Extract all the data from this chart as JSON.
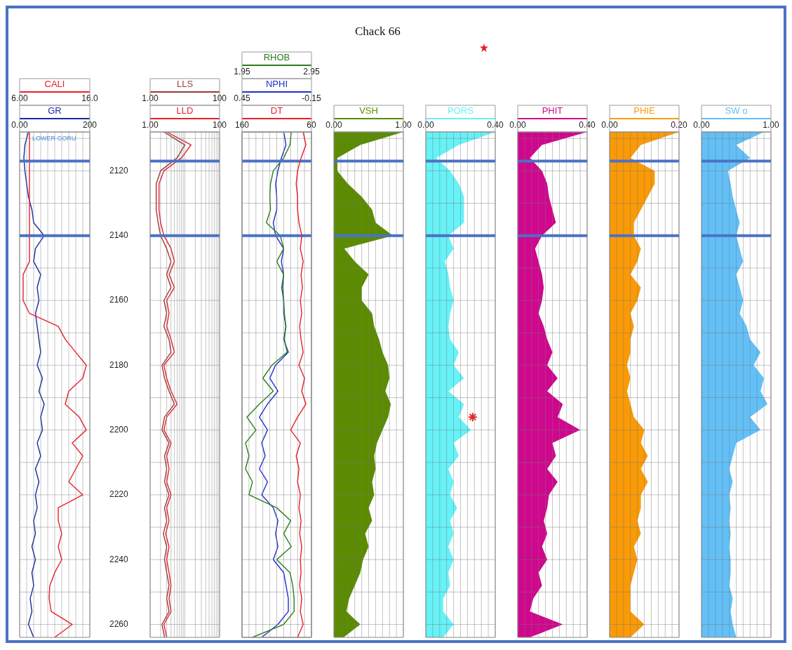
{
  "chart_data": [
    {
      "type": "line",
      "orientation": "horizontal",
      "grid": true,
      "xlim": [
        6,
        16
      ],
      "xticks": [
        {
          "value": 6,
          "label": "6.00"
        },
        {
          "value": 7,
          "label": null
        },
        {
          "value": 8,
          "label": null
        },
        {
          "value": 9,
          "label": null
        },
        {
          "value": 10,
          "label": null
        },
        {
          "value": 11,
          "label": null
        },
        {
          "value": 12,
          "label": null
        },
        {
          "value": 13,
          "label": null
        },
        {
          "value": 14,
          "label": null
        },
        {
          "value": 15,
          "label": null
        },
        {
          "value": 16,
          "label": "16.0"
        }
      ],
      "x2lim": [
        0,
        200
      ],
      "x2ticks": [
        {
          "value": 0,
          "label": "0.00"
        },
        200
      ],
      "ylim": [
        2264,
        2108
      ],
      "yticks": [
        {
          "value": 2110,
          "label": null
        },
        2120,
        {
          "value": 2130,
          "label": null
        },
        2140,
        {
          "value": 2150,
          "label": null
        },
        2160,
        {
          "value": 2170,
          "label": null
        },
        2180,
        {
          "value": 2190,
          "label": null
        },
        2200,
        {
          "value": 2210,
          "label": null
        },
        2220,
        {
          "value": 2230,
          "label": null
        },
        2240,
        {
          "value": 2250,
          "label": null
        },
        2260
      ],
      "ref_lines": [
        {
          "axis": "y",
          "value": 2117,
          "color": "#4a72c4"
        },
        {
          "axis": "y",
          "value": 2140,
          "color": "#4a72c4"
        }
      ],
      "annotations": [
        "LOWER GORU"
      ],
      "x": [
        2108,
        2112,
        2116,
        2120,
        2124,
        2128,
        2132,
        2136,
        2140,
        2144,
        2148,
        2152,
        2156,
        2160,
        2164,
        2168,
        2172,
        2176,
        2180,
        2184,
        2188,
        2192,
        2196,
        2200,
        2204,
        2208,
        2212,
        2216,
        2220,
        2224,
        2228,
        2232,
        2236,
        2240,
        2244,
        2248,
        2252,
        2256,
        2260,
        2264
      ],
      "series": [
        {
          "name": "CALI",
          "color": "#e8202a",
          "values": [
            7.4,
            7.4,
            7.4,
            7.4,
            7.4,
            7.4,
            7.4,
            7.4,
            7.4,
            7.4,
            7.4,
            6.5,
            6.5,
            6.5,
            7.4,
            11.5,
            12.5,
            14.0,
            15.5,
            15.0,
            13.0,
            12.5,
            14.5,
            15.5,
            13.5,
            15.0,
            14.0,
            13.0,
            15.0,
            11.5,
            11.5,
            12.0,
            11.5,
            12.0,
            11.0,
            10.3,
            10.2,
            10.5,
            13.5,
            11
          ]
        },
        {
          "name": "GR",
          "color": "#1a2aa0",
          "axis": "x2",
          "values": [
            25,
            15,
            12,
            15,
            20,
            25,
            35,
            40,
            70,
            45,
            40,
            60,
            50,
            55,
            45,
            50,
            55,
            60,
            50,
            65,
            55,
            70,
            60,
            65,
            50,
            60,
            45,
            55,
            45,
            50,
            40,
            45,
            35,
            45,
            35,
            40,
            30,
            35,
            25,
            40
          ]
        }
      ]
    },
    {
      "type": "line",
      "orientation": "horizontal",
      "grid": true,
      "log": "x",
      "tick_labels": "x",
      "xlim": [
        1,
        100
      ],
      "xticks": [
        {
          "value": 1,
          "label": "1.00"
        },
        {
          "value": 2,
          "label": null
        },
        {
          "value": 3,
          "label": null
        },
        {
          "value": 4,
          "label": null
        },
        {
          "value": 5,
          "label": null
        },
        {
          "value": 6,
          "label": null
        },
        {
          "value": 7,
          "label": null
        },
        {
          "value": 8,
          "label": null
        },
        {
          "value": 9,
          "label": null
        },
        {
          "value": 10,
          "label": null
        },
        {
          "value": 20,
          "label": null
        },
        {
          "value": 30,
          "label": null
        },
        {
          "value": 40,
          "label": null
        },
        {
          "value": 50,
          "label": null
        },
        {
          "value": 60,
          "label": null
        },
        {
          "value": 70,
          "label": null
        },
        {
          "value": 80,
          "label": null
        },
        {
          "value": 90,
          "label": null
        },
        100
      ],
      "x2lim": [
        1,
        100
      ],
      "x2ticks": [
        {
          "value": 1,
          "label": "1.00"
        },
        100
      ],
      "ylim": [
        2264,
        2108
      ],
      "yticks": [
        {
          "value": 2110,
          "label": null
        },
        2120,
        {
          "value": 2130,
          "label": null
        },
        2140,
        {
          "value": 2150,
          "label": null
        },
        2160,
        {
          "value": 2170,
          "label": null
        },
        2180,
        {
          "value": 2190,
          "label": null
        },
        2200,
        {
          "value": 2210,
          "label": null
        },
        2220,
        {
          "value": 2230,
          "label": null
        },
        2240,
        {
          "value": 2250,
          "label": null
        },
        2260
      ],
      "ref_lines": [
        {
          "axis": "y",
          "value": 2117,
          "color": "#4a72c4"
        },
        {
          "axis": "y",
          "value": 2140,
          "color": "#4a72c4"
        }
      ],
      "x": [
        2108,
        2112,
        2116,
        2120,
        2124,
        2128,
        2132,
        2136,
        2140,
        2144,
        2148,
        2152,
        2156,
        2160,
        2164,
        2168,
        2172,
        2176,
        2180,
        2184,
        2188,
        2192,
        2196,
        2200,
        2204,
        2208,
        2212,
        2216,
        2220,
        2224,
        2228,
        2232,
        2236,
        2240,
        2244,
        2248,
        2252,
        2256,
        2260,
        2264
      ],
      "series": [
        {
          "name": "LLS",
          "color": "#9a3a3a",
          "values": [
            2.5,
            10,
            6,
            2,
            1.5,
            1.5,
            1.5,
            1.7,
            2,
            3,
            4,
            3,
            4,
            2.5,
            3,
            2.5,
            3.5,
            4,
            2.2,
            2.6,
            3.5,
            5,
            2.6,
            2.2,
            3.5,
            2.6,
            3,
            2.6,
            3.5,
            2.6,
            3,
            2.4,
            3,
            2.6,
            3,
            3.5,
            3,
            3.5,
            2.2,
            2.6
          ]
        },
        {
          "name": "LLD",
          "color": "#e8202a",
          "values": [
            3,
            15,
            8,
            2.5,
            1.8,
            1.8,
            1.8,
            2,
            2.5,
            4,
            5,
            3.5,
            5,
            3,
            3.5,
            3,
            4,
            5,
            2.5,
            3,
            4,
            6,
            3,
            2.5,
            4,
            3,
            3.5,
            3,
            4,
            3,
            3.5,
            2.8,
            3.5,
            3,
            3.5,
            4,
            3.5,
            4,
            2.5,
            3
          ]
        }
      ]
    },
    {
      "type": "line",
      "orientation": "horizontal",
      "grid": true,
      "tick_labels": "x",
      "xlim": [
        1.95,
        2.95
      ],
      "xticks": [
        {
          "value": 1.95,
          "label": "1.95"
        },
        {
          "value": 2.05,
          "label": null
        },
        {
          "value": 2.15,
          "label": null
        },
        {
          "value": 2.25,
          "label": null
        },
        {
          "value": 2.35,
          "label": null
        },
        {
          "value": 2.45,
          "label": null
        },
        {
          "value": 2.55,
          "label": null
        },
        {
          "value": 2.65,
          "label": null
        },
        {
          "value": 2.75,
          "label": null
        },
        {
          "value": 2.85,
          "label": null
        },
        {
          "value": 2.95,
          "label": "2.95"
        }
      ],
      "x2lim": [
        0.45,
        -0.15
      ],
      "x2ticks": [
        {
          "value": 0.45,
          "label": "0.45"
        },
        {
          "value": -0.15,
          "label": "-0.15"
        }
      ],
      "ylim": [
        2264,
        2108
      ],
      "yticks": [
        {
          "value": 2110,
          "label": null
        },
        2120,
        {
          "value": 2130,
          "label": null
        },
        2140,
        {
          "value": 2150,
          "label": null
        },
        2160,
        {
          "value": 2170,
          "label": null
        },
        2180,
        {
          "value": 2190,
          "label": null
        },
        2200,
        {
          "value": 2210,
          "label": null
        },
        2220,
        {
          "value": 2230,
          "label": null
        },
        2240,
        {
          "value": 2250,
          "label": null
        },
        2260
      ],
      "ref_lines": [
        {
          "axis": "y",
          "value": 2117,
          "color": "#4a72c4"
        },
        {
          "axis": "y",
          "value": 2140,
          "color": "#4a72c4"
        }
      ],
      "x": [
        2108,
        2112,
        2116,
        2120,
        2124,
        2128,
        2132,
        2136,
        2140,
        2144,
        2148,
        2152,
        2156,
        2160,
        2164,
        2168,
        2172,
        2176,
        2180,
        2184,
        2188,
        2192,
        2196,
        2200,
        2204,
        2208,
        2212,
        2216,
        2220,
        2224,
        2228,
        2232,
        2236,
        2240,
        2244,
        2248,
        2252,
        2256,
        2260,
        2264
      ],
      "series": [
        {
          "name": "RHOB",
          "color": "#2a7d1a",
          "values": [
            2.66,
            2.64,
            2.55,
            2.4,
            2.36,
            2.35,
            2.36,
            2.3,
            2.5,
            2.55,
            2.45,
            2.55,
            2.52,
            2.55,
            2.56,
            2.58,
            2.56,
            2.6,
            2.38,
            2.25,
            2.4,
            2.2,
            2.02,
            2.15,
            2.0,
            2.05,
            2.0,
            2.1,
            2.05,
            2.45,
            2.65,
            2.55,
            2.66,
            2.45,
            2.64,
            2.68,
            2.7,
            2.7,
            2.55,
            2.1
          ]
        },
        {
          "name": "NPHI",
          "color": "#1f2fd0",
          "axis": "x2",
          "values": [
            0.09,
            0.07,
            0.11,
            0.14,
            0.16,
            0.15,
            0.15,
            0.18,
            0.16,
            0.09,
            0.11,
            0.09,
            0.1,
            0.09,
            0.09,
            0.07,
            0.09,
            0.05,
            0.16,
            0.21,
            0.14,
            0.23,
            0.3,
            0.23,
            0.28,
            0.25,
            0.3,
            0.23,
            0.28,
            0.18,
            0.14,
            0.16,
            0.14,
            0.18,
            0.09,
            0.07,
            0.05,
            0.05,
            0.14,
            0.28
          ]
        }
      ]
    },
    {
      "type": "line",
      "orientation": "horizontal",
      "tick_labels": "x",
      "xlim": [
        160,
        60
      ],
      "xticks": [
        160,
        60
      ],
      "ylim": [
        2264,
        2108
      ],
      "x": [
        2108,
        2112,
        2116,
        2120,
        2124,
        2128,
        2132,
        2136,
        2140,
        2144,
        2148,
        2152,
        2156,
        2160,
        2164,
        2168,
        2172,
        2176,
        2180,
        2184,
        2188,
        2192,
        2196,
        2200,
        2204,
        2208,
        2212,
        2216,
        2220,
        2224,
        2228,
        2232,
        2236,
        2240,
        2244,
        2248,
        2252,
        2256,
        2260,
        2264
      ],
      "series": [
        {
          "name": "DT",
          "color": "#e8202a",
          "values": [
            72,
            68,
            75,
            80,
            82,
            80,
            80,
            78,
            74,
            76,
            72,
            75,
            73,
            76,
            74,
            77,
            75,
            72,
            78,
            70,
            74,
            68,
            80,
            90,
            76,
            82,
            78,
            80,
            76,
            78,
            75,
            77,
            74,
            76,
            75,
            77,
            74,
            76,
            72,
            80
          ]
        }
      ]
    },
    {
      "type": "area",
      "orientation": "horizontal",
      "grid": true,
      "tick_labels": "x",
      "title": "Chack 66",
      "xlim": [
        0,
        1
      ],
      "xticks": [
        {
          "value": 0,
          "label": "0.00"
        },
        {
          "value": 0.1,
          "label": null
        },
        {
          "value": 0.2,
          "label": null
        },
        {
          "value": 0.3,
          "label": null
        },
        {
          "value": 0.4,
          "label": null
        },
        {
          "value": 0.5,
          "label": null
        },
        {
          "value": 0.6,
          "label": null
        },
        {
          "value": 0.7,
          "label": null
        },
        {
          "value": 0.8,
          "label": null
        },
        {
          "value": 0.9,
          "label": null
        },
        {
          "value": 1,
          "label": "1.00"
        }
      ],
      "ylim": [
        2264,
        2108
      ],
      "yticks": [
        {
          "value": 2110,
          "label": null
        },
        2120,
        {
          "value": 2130,
          "label": null
        },
        2140,
        {
          "value": 2150,
          "label": null
        },
        2160,
        {
          "value": 2170,
          "label": null
        },
        2180,
        {
          "value": 2190,
          "label": null
        },
        2200,
        {
          "value": 2210,
          "label": null
        },
        2220,
        {
          "value": 2230,
          "label": null
        },
        2240,
        {
          "value": 2250,
          "label": null
        },
        2260
      ],
      "ref_lines": [
        {
          "axis": "y",
          "value": 2117,
          "color": "#4a72c4"
        },
        {
          "axis": "y",
          "value": 2140,
          "color": "#4a72c4"
        }
      ],
      "x": [
        2108,
        2112,
        2116,
        2120,
        2124,
        2128,
        2132,
        2136,
        2140,
        2144,
        2148,
        2152,
        2156,
        2160,
        2164,
        2168,
        2172,
        2176,
        2180,
        2184,
        2188,
        2192,
        2196,
        2200,
        2204,
        2208,
        2212,
        2216,
        2220,
        2224,
        2228,
        2232,
        2236,
        2240,
        2244,
        2248,
        2252,
        2256,
        2260,
        2264
      ],
      "series": [
        {
          "name": "VSH",
          "color": "#5b8c00",
          "values": [
            1.0,
            0.38,
            0.05,
            0.05,
            0.2,
            0.4,
            0.55,
            0.6,
            0.85,
            0.15,
            0.3,
            0.5,
            0.4,
            0.4,
            0.55,
            0.58,
            0.65,
            0.7,
            0.78,
            0.8,
            0.74,
            0.82,
            0.78,
            0.7,
            0.62,
            0.58,
            0.6,
            0.55,
            0.58,
            0.5,
            0.55,
            0.45,
            0.5,
            0.42,
            0.38,
            0.3,
            0.22,
            0.18,
            0.38,
            0.14
          ]
        }
      ]
    },
    {
      "type": "area",
      "orientation": "horizontal",
      "grid": true,
      "tick_labels": "x",
      "xlim": [
        0,
        0.4
      ],
      "xticks": [
        {
          "value": 0,
          "label": "0.00"
        },
        {
          "value": 0.04,
          "label": null
        },
        {
          "value": 0.08,
          "label": null
        },
        {
          "value": 0.12,
          "label": null
        },
        {
          "value": 0.16,
          "label": null
        },
        {
          "value": 0.2,
          "label": null
        },
        {
          "value": 0.24,
          "label": null
        },
        {
          "value": 0.28,
          "label": null
        },
        {
          "value": 0.32,
          "label": null
        },
        {
          "value": 0.36,
          "label": null
        },
        {
          "value": 0.4,
          "label": "0.40"
        }
      ],
      "ylim": [
        2264,
        2108
      ],
      "yticks": [
        {
          "value": 2110,
          "label": null
        },
        2120,
        {
          "value": 2130,
          "label": null
        },
        2140,
        {
          "value": 2150,
          "label": null
        },
        2160,
        {
          "value": 2170,
          "label": null
        },
        2180,
        {
          "value": 2190,
          "label": null
        },
        2200,
        {
          "value": 2210,
          "label": null
        },
        2220,
        {
          "value": 2230,
          "label": null
        },
        2240,
        {
          "value": 2250,
          "label": null
        },
        2260
      ],
      "ref_lines": [
        {
          "axis": "y",
          "value": 2117,
          "color": "#4a72c4"
        },
        {
          "axis": "y",
          "value": 2140,
          "color": "#4a72c4"
        }
      ],
      "x": [
        2108,
        2112,
        2116,
        2120,
        2124,
        2128,
        2132,
        2136,
        2140,
        2144,
        2148,
        2152,
        2156,
        2160,
        2164,
        2168,
        2172,
        2176,
        2180,
        2184,
        2188,
        2192,
        2196,
        2200,
        2204,
        2208,
        2212,
        2216,
        2220,
        2224,
        2228,
        2232,
        2236,
        2240,
        2244,
        2248,
        2252,
        2256,
        2260,
        2264
      ],
      "series": [
        {
          "name": "PORS",
          "color": "#66f2f7",
          "values": [
            0.4,
            0.19,
            0.06,
            0.14,
            0.19,
            0.22,
            0.22,
            0.22,
            0.13,
            0.16,
            0.11,
            0.13,
            0.14,
            0.16,
            0.14,
            0.13,
            0.14,
            0.19,
            0.16,
            0.22,
            0.13,
            0.22,
            0.19,
            0.26,
            0.16,
            0.19,
            0.13,
            0.16,
            0.14,
            0.18,
            0.14,
            0.16,
            0.13,
            0.16,
            0.13,
            0.14,
            0.1,
            0.1,
            0.16,
            0.1
          ]
        },
        {
          "type": "scatter",
          "marker": "cross",
          "color": "#e8202a",
          "x": [
            2196
          ],
          "values": [
            0.27
          ]
        }
      ]
    },
    {
      "type": "area",
      "orientation": "horizontal",
      "grid": true,
      "tick_labels": "x",
      "xlim": [
        0,
        0.4
      ],
      "xticks": [
        {
          "value": 0,
          "label": "0.00"
        },
        {
          "value": 0.04,
          "label": null
        },
        {
          "value": 0.08,
          "label": null
        },
        {
          "value": 0.12,
          "label": null
        },
        {
          "value": 0.16,
          "label": null
        },
        {
          "value": 0.2,
          "label": null
        },
        {
          "value": 0.24,
          "label": null
        },
        {
          "value": 0.28,
          "label": null
        },
        {
          "value": 0.32,
          "label": null
        },
        {
          "value": 0.36,
          "label": null
        },
        {
          "value": 0.4,
          "label": "0.40"
        }
      ],
      "ylim": [
        2264,
        2108
      ],
      "yticks": [
        {
          "value": 2110,
          "label": null
        },
        2120,
        {
          "value": 2130,
          "label": null
        },
        2140,
        {
          "value": 2150,
          "label": null
        },
        2160,
        {
          "value": 2170,
          "label": null
        },
        2180,
        {
          "value": 2190,
          "label": null
        },
        2200,
        {
          "value": 2210,
          "label": null
        },
        2220,
        {
          "value": 2230,
          "label": null
        },
        2240,
        {
          "value": 2250,
          "label": null
        },
        2260
      ],
      "ref_lines": [
        {
          "axis": "y",
          "value": 2117,
          "color": "#4a72c4"
        },
        {
          "axis": "y",
          "value": 2140,
          "color": "#4a72c4"
        }
      ],
      "x": [
        2108,
        2112,
        2116,
        2120,
        2124,
        2128,
        2132,
        2136,
        2140,
        2144,
        2148,
        2152,
        2156,
        2160,
        2164,
        2168,
        2172,
        2176,
        2180,
        2184,
        2188,
        2192,
        2196,
        2200,
        2204,
        2208,
        2212,
        2216,
        2220,
        2224,
        2228,
        2232,
        2236,
        2240,
        2244,
        2248,
        2252,
        2256,
        2260,
        2264
      ],
      "series": [
        {
          "name": "PHIT",
          "color": "#d0078e",
          "values": [
            0.4,
            0.14,
            0.07,
            0.14,
            0.17,
            0.18,
            0.2,
            0.22,
            0.14,
            0.1,
            0.12,
            0.14,
            0.15,
            0.14,
            0.12,
            0.15,
            0.17,
            0.2,
            0.17,
            0.23,
            0.17,
            0.26,
            0.23,
            0.36,
            0.2,
            0.22,
            0.17,
            0.23,
            0.18,
            0.17,
            0.15,
            0.17,
            0.14,
            0.17,
            0.12,
            0.14,
            0.09,
            0.07,
            0.26,
            0.07
          ]
        }
      ]
    },
    {
      "type": "area",
      "orientation": "horizontal",
      "grid": true,
      "tick_labels": "x",
      "xlim": [
        0,
        0.2
      ],
      "xticks": [
        {
          "value": 0,
          "label": "0.00"
        },
        {
          "value": 0.02,
          "label": null
        },
        {
          "value": 0.04,
          "label": null
        },
        {
          "value": 0.06,
          "label": null
        },
        {
          "value": 0.08,
          "label": null
        },
        {
          "value": 0.1,
          "label": null
        },
        {
          "value": 0.12,
          "label": null
        },
        {
          "value": 0.14,
          "label": null
        },
        {
          "value": 0.16,
          "label": null
        },
        {
          "value": 0.18,
          "label": null
        },
        {
          "value": 0.2,
          "label": "0.20"
        }
      ],
      "ylim": [
        2264,
        2108
      ],
      "yticks": [
        {
          "value": 2110,
          "label": null
        },
        2120,
        {
          "value": 2130,
          "label": null
        },
        2140,
        {
          "value": 2150,
          "label": null
        },
        2160,
        {
          "value": 2170,
          "label": null
        },
        2180,
        {
          "value": 2190,
          "label": null
        },
        2200,
        {
          "value": 2210,
          "label": null
        },
        2220,
        {
          "value": 2230,
          "label": null
        },
        2240,
        {
          "value": 2250,
          "label": null
        },
        2260
      ],
      "ref_lines": [
        {
          "axis": "y",
          "value": 2117,
          "color": "#4a72c4"
        },
        {
          "axis": "y",
          "value": 2140,
          "color": "#4a72c4"
        }
      ],
      "x": [
        2108,
        2112,
        2116,
        2120,
        2124,
        2128,
        2132,
        2136,
        2140,
        2144,
        2148,
        2152,
        2156,
        2160,
        2164,
        2168,
        2172,
        2176,
        2180,
        2184,
        2188,
        2192,
        2196,
        2200,
        2204,
        2208,
        2212,
        2216,
        2220,
        2224,
        2228,
        2232,
        2236,
        2240,
        2244,
        2248,
        2252,
        2256,
        2260,
        2264
      ],
      "series": [
        {
          "name": "PHIE",
          "color": "#fa9a06",
          "values": [
            0.2,
            0.09,
            0.06,
            0.13,
            0.13,
            0.11,
            0.09,
            0.07,
            0.07,
            0.09,
            0.08,
            0.06,
            0.09,
            0.08,
            0.06,
            0.07,
            0.06,
            0.06,
            0.05,
            0.06,
            0.05,
            0.06,
            0.07,
            0.1,
            0.09,
            0.11,
            0.09,
            0.11,
            0.09,
            0.09,
            0.08,
            0.09,
            0.07,
            0.08,
            0.07,
            0.06,
            0.06,
            0.06,
            0.1,
            0.06
          ]
        }
      ]
    },
    {
      "type": "area",
      "orientation": "horizontal",
      "grid": true,
      "tick_labels": "x",
      "xlim": [
        0,
        1
      ],
      "xticks": [
        {
          "value": 0,
          "label": "0.00"
        },
        {
          "value": 0.1,
          "label": null
        },
        {
          "value": 0.2,
          "label": null
        },
        {
          "value": 0.3,
          "label": null
        },
        {
          "value": 0.4,
          "label": null
        },
        {
          "value": 0.5,
          "label": null
        },
        {
          "value": 0.6,
          "label": null
        },
        {
          "value": 0.7,
          "label": null
        },
        {
          "value": 0.8,
          "label": null
        },
        {
          "value": 0.9,
          "label": null
        },
        {
          "value": 1,
          "label": "1.00"
        }
      ],
      "ylim": [
        2264,
        2108
      ],
      "yticks": [
        {
          "value": 2110,
          "label": null
        },
        2120,
        {
          "value": 2130,
          "label": null
        },
        2140,
        {
          "value": 2150,
          "label": null
        },
        2160,
        {
          "value": 2170,
          "label": null
        },
        2180,
        {
          "value": 2190,
          "label": null
        },
        2200,
        {
          "value": 2210,
          "label": null
        },
        2220,
        {
          "value": 2230,
          "label": null
        },
        2240,
        {
          "value": 2250,
          "label": null
        },
        2260
      ],
      "ref_lines": [
        {
          "axis": "y",
          "value": 2117,
          "color": "#4a72c4"
        },
        {
          "axis": "y",
          "value": 2140,
          "color": "#4a72c4"
        }
      ],
      "x": [
        2108,
        2112,
        2116,
        2120,
        2124,
        2128,
        2132,
        2136,
        2140,
        2144,
        2148,
        2152,
        2156,
        2160,
        2164,
        2168,
        2172,
        2176,
        2180,
        2184,
        2188,
        2192,
        2196,
        2200,
        2204,
        2208,
        2212,
        2216,
        2220,
        2224,
        2228,
        2232,
        2236,
        2240,
        2244,
        2248,
        2252,
        2256,
        2260,
        2264
      ],
      "series": [
        {
          "name": "SW o",
          "color": "#62c0f7",
          "values": [
            0.9,
            0.5,
            0.7,
            0.38,
            0.42,
            0.45,
            0.5,
            0.55,
            0.5,
            0.55,
            0.6,
            0.5,
            0.55,
            0.6,
            0.55,
            0.65,
            0.7,
            0.85,
            0.75,
            0.9,
            0.85,
            0.95,
            0.7,
            0.85,
            0.5,
            0.45,
            0.4,
            0.45,
            0.4,
            0.42,
            0.4,
            0.42,
            0.4,
            0.42,
            0.42,
            0.4,
            0.45,
            0.42,
            0.45,
            0.5
          ]
        }
      ]
    }
  ]
}
